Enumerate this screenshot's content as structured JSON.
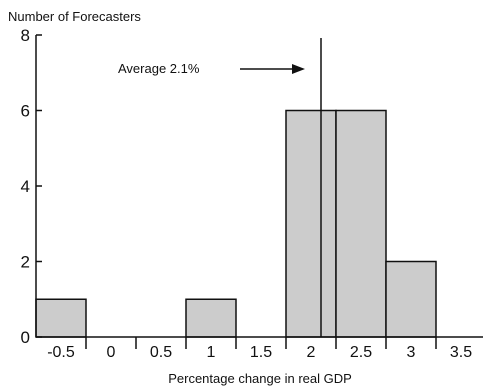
{
  "chart_data": {
    "type": "bar",
    "ylabel": "Number of Forecasters",
    "xlabel": "Percentage change in real GDP",
    "ylim": [
      0,
      8
    ],
    "yticks": [
      "0",
      "2",
      "4",
      "6",
      "8"
    ],
    "xlim": [
      -0.75,
      3.75
    ],
    "xticks": [
      "-0.5",
      "0",
      "0.5",
      "1",
      "1.5",
      "2",
      "2.5",
      "3",
      "3.5"
    ],
    "bins": [
      {
        "from": -0.75,
        "to": -0.25,
        "count": 1
      },
      {
        "from": 0.75,
        "to": 1.25,
        "count": 1
      },
      {
        "from": 1.75,
        "to": 2.25,
        "count": 6
      },
      {
        "from": 2.25,
        "to": 2.75,
        "count": 6
      },
      {
        "from": 2.75,
        "to": 3.25,
        "count": 2
      }
    ],
    "annotation": {
      "label": "Average 2.1%",
      "value": 2.1
    },
    "bar_color": "#cccccc",
    "edge_color": "#111111"
  }
}
